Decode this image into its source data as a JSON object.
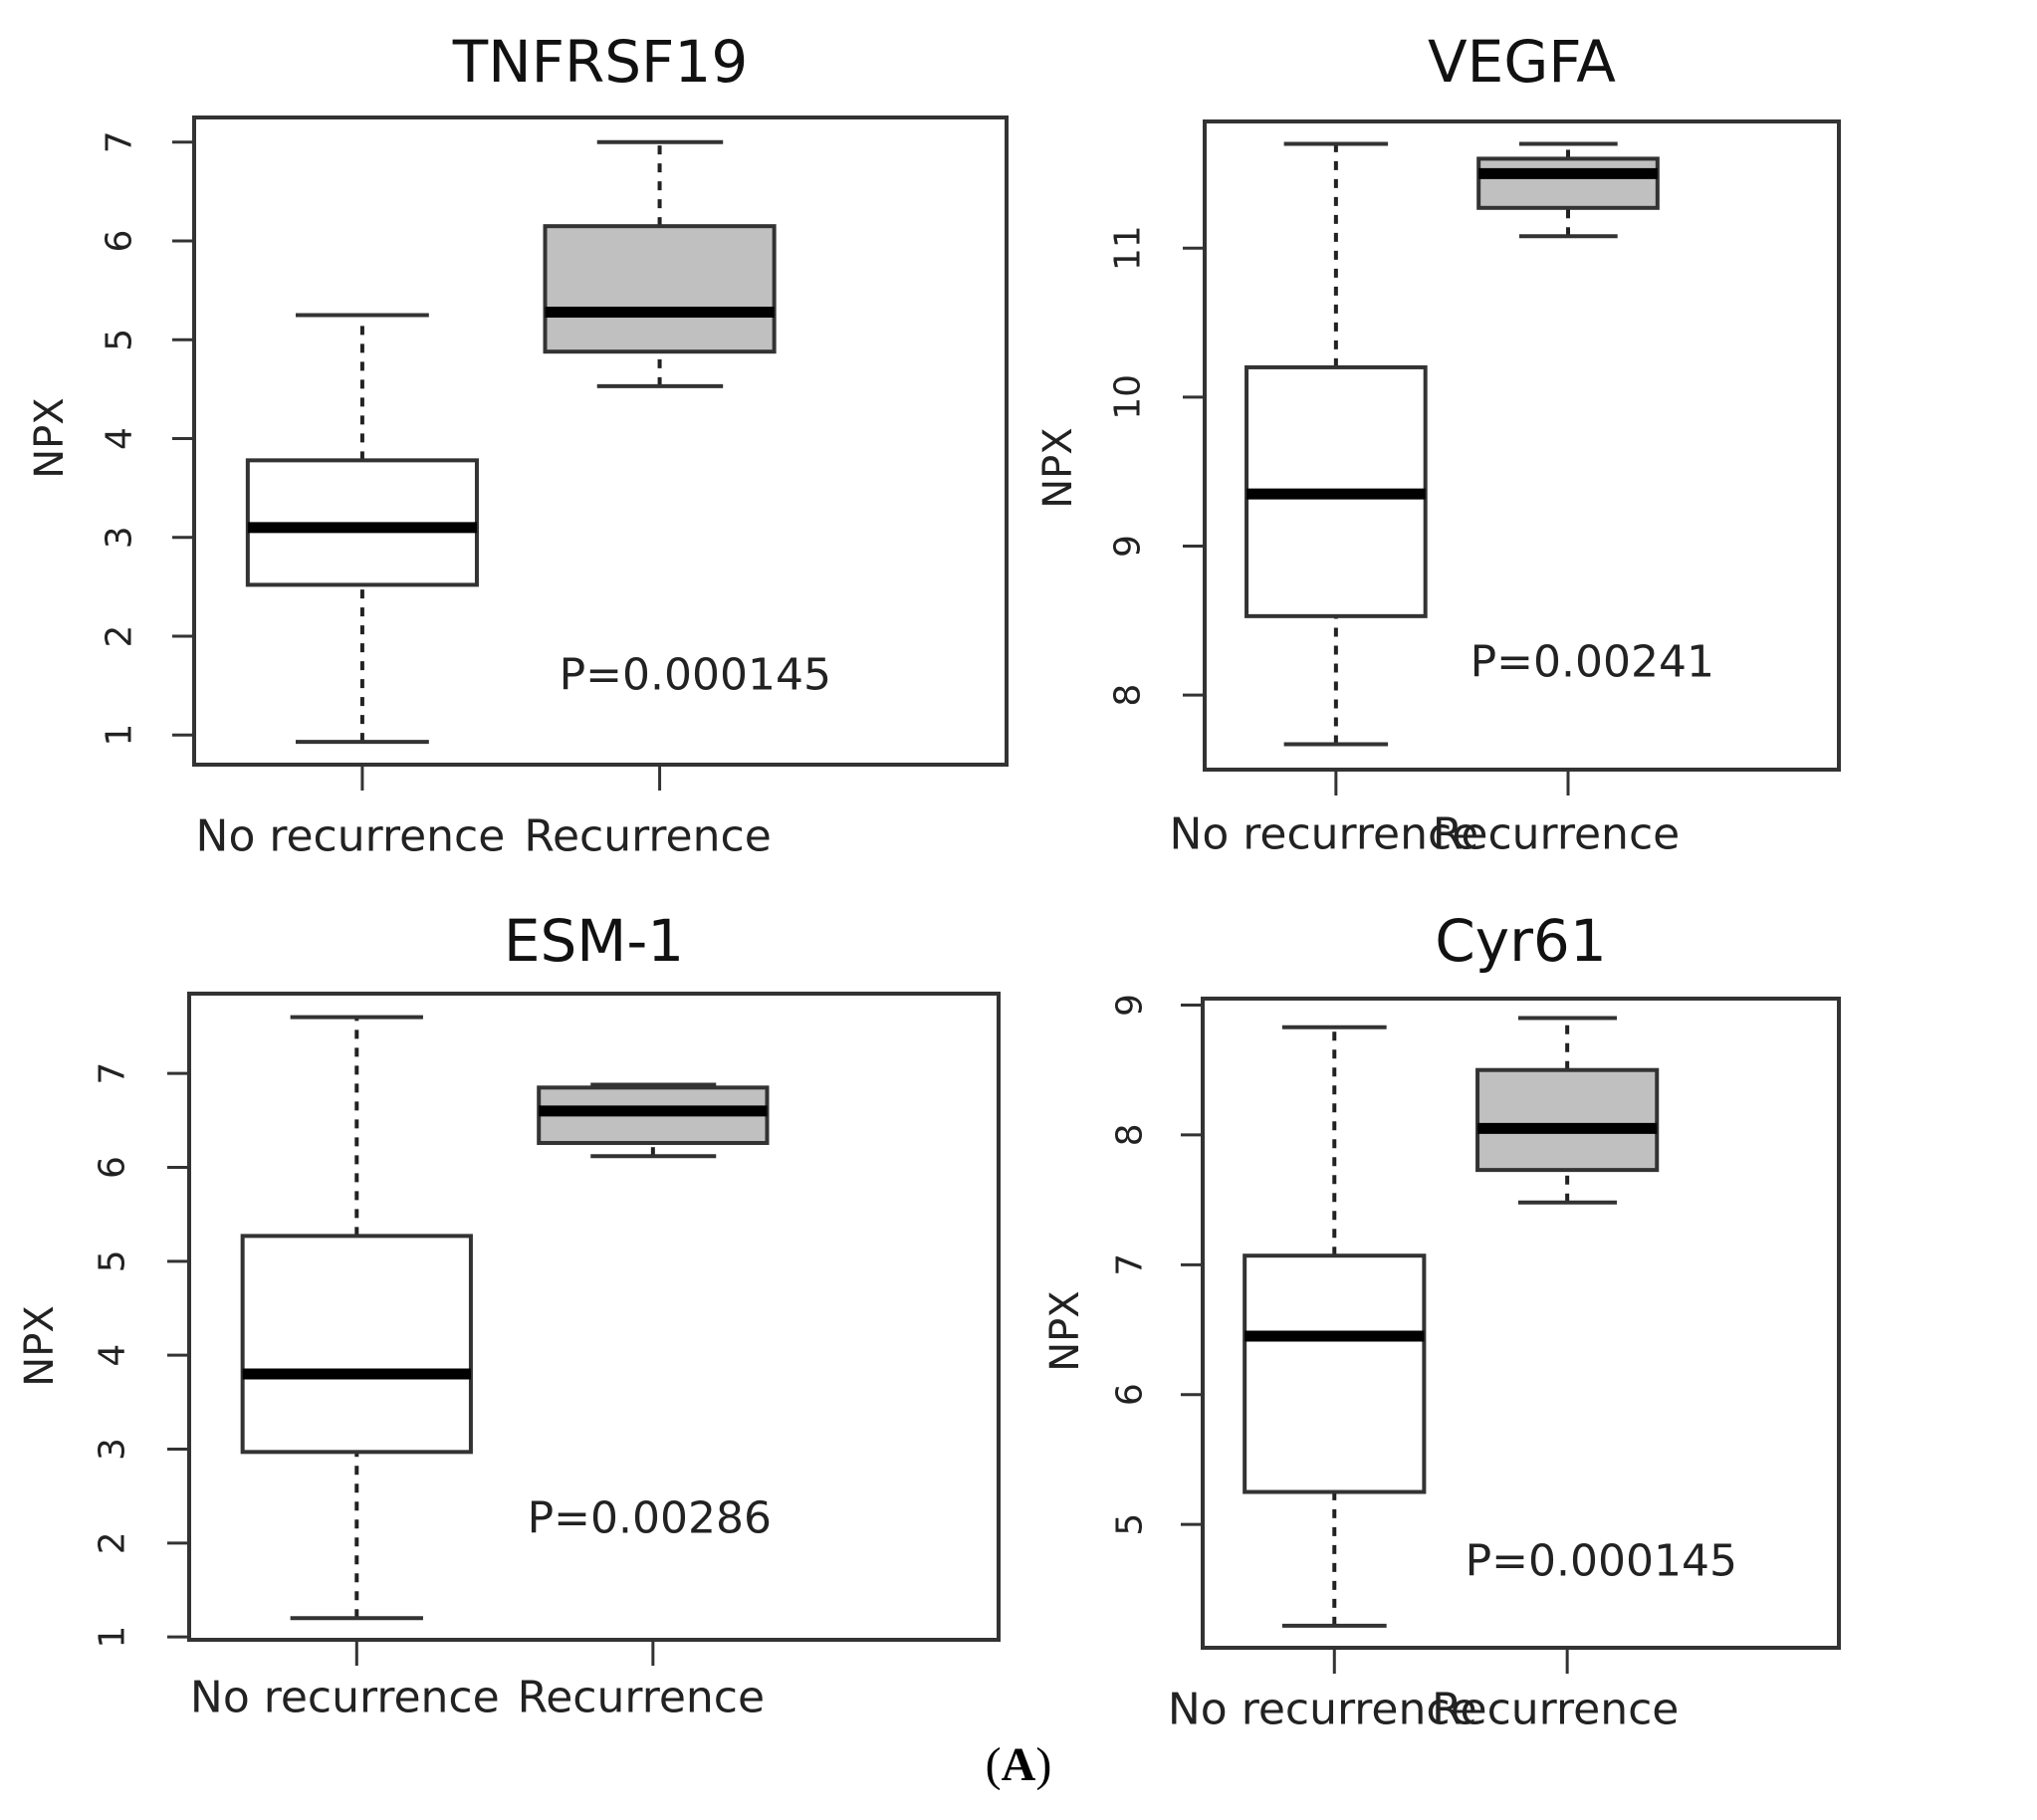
{
  "figure": {
    "panel_label_open": "(",
    "panel_label_letter": "A",
    "panel_label_close": ")"
  },
  "colors": {
    "recurrence_fill": "#c0c0c0",
    "no_recurrence_fill": "#ffffff",
    "stroke": "#333333",
    "median": "#000000"
  },
  "chart_data": [
    {
      "type": "box",
      "title": "TNFRSF19",
      "ylabel": "NPX",
      "xlabel": "",
      "categories": [
        "No recurrence",
        "Recurrence"
      ],
      "ylim": [
        0.7,
        7.25
      ],
      "yticks": [
        1,
        2,
        3,
        4,
        5,
        6,
        7
      ],
      "boxes": [
        {
          "whisker_low": 0.93,
          "q1": 2.52,
          "median": 3.1,
          "q3": 3.78,
          "whisker_high": 5.25
        },
        {
          "whisker_low": 4.53,
          "q1": 4.88,
          "median": 5.28,
          "q3": 6.15,
          "whisker_high": 7.0
        }
      ],
      "annotation": "P=0.000145"
    },
    {
      "type": "box",
      "title": "VEGFA",
      "ylabel": "NPX",
      "xlabel": "",
      "categories": [
        "No recurrence",
        "Recurrence"
      ],
      "ylim": [
        7.5,
        11.85
      ],
      "yticks": [
        8,
        9,
        10,
        11
      ],
      "boxes": [
        {
          "whisker_low": 7.67,
          "q1": 8.53,
          "median": 9.35,
          "q3": 10.2,
          "whisker_high": 11.7
        },
        {
          "whisker_low": 11.08,
          "q1": 11.27,
          "median": 11.5,
          "q3": 11.6,
          "whisker_high": 11.7
        }
      ],
      "annotation": "P=0.00241"
    },
    {
      "type": "box",
      "title": "ESM-1",
      "ylabel": "NPX",
      "xlabel": "",
      "categories": [
        "No recurrence",
        "Recurrence"
      ],
      "ylim": [
        0.97,
        7.85
      ],
      "yticks": [
        1,
        2,
        3,
        4,
        5,
        6,
        7
      ],
      "boxes": [
        {
          "whisker_low": 1.2,
          "q1": 2.97,
          "median": 3.8,
          "q3": 5.27,
          "whisker_high": 7.6
        },
        {
          "whisker_low": 6.12,
          "q1": 6.26,
          "median": 6.6,
          "q3": 6.85,
          "whisker_high": 6.88
        }
      ],
      "annotation": "P=0.00286"
    },
    {
      "type": "box",
      "title": "Cyr61",
      "ylabel": "NPX",
      "xlabel": "",
      "categories": [
        "No recurrence",
        "Recurrence"
      ],
      "ylim": [
        4.05,
        9.05
      ],
      "yticks": [
        5,
        6,
        7,
        8,
        9
      ],
      "boxes": [
        {
          "whisker_low": 4.22,
          "q1": 5.25,
          "median": 6.45,
          "q3": 7.07,
          "whisker_high": 8.83
        },
        {
          "whisker_low": 7.48,
          "q1": 7.73,
          "median": 8.05,
          "q3": 8.5,
          "whisker_high": 8.9
        }
      ],
      "annotation": "P=0.000145"
    }
  ]
}
